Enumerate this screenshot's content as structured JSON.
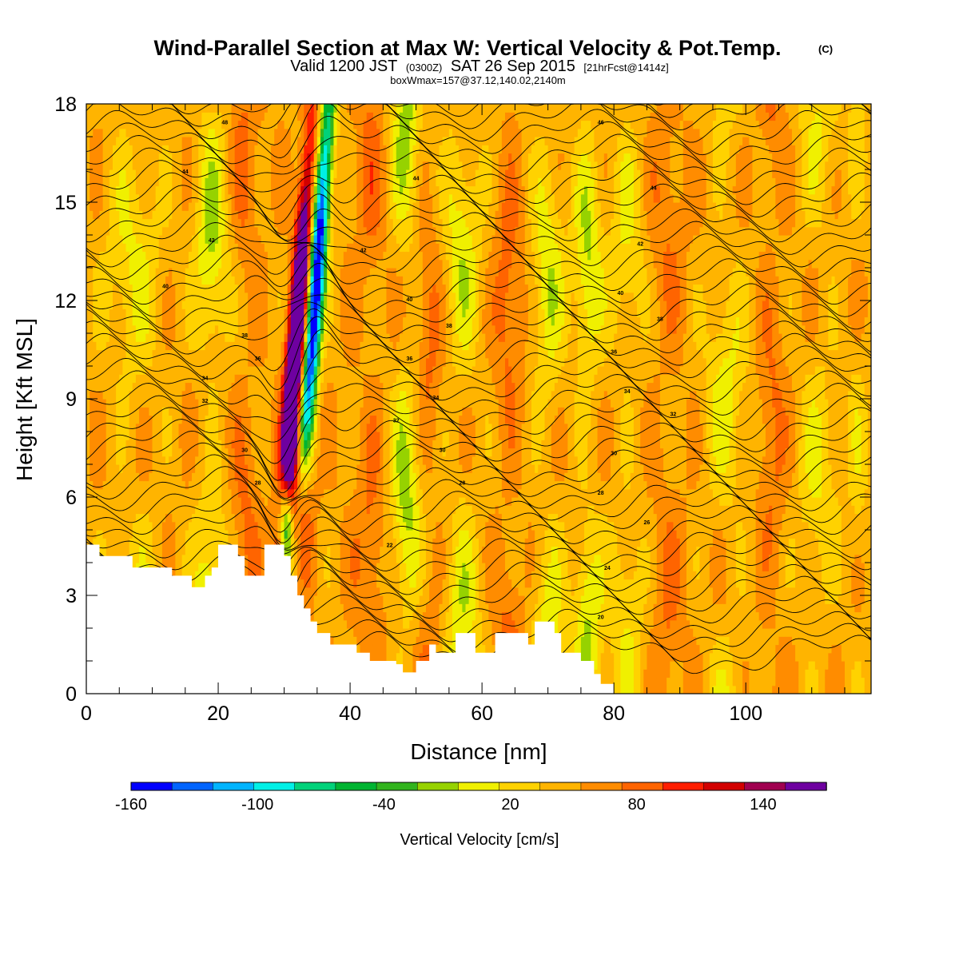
{
  "title": {
    "main": "Wind-Parallel Section at Max W: Vertical Velocity & Pot.Temp.",
    "copyright": "(C)",
    "valid_prefix": "Valid 1200 JST",
    "valid_utc": "(0300Z)",
    "valid_date": "SAT 26 Sep 2015",
    "forecast": "[21hrFcst@1414z]",
    "box_info": "boxWmax=157@37.12,140.02,2140m"
  },
  "chart_data": {
    "type": "heatmap",
    "title": "Wind-Parallel Section at Max W: Vertical Velocity & Pot.Temp.",
    "xlabel": "Distance [nm]",
    "ylabel": "Height [Kft MSL]",
    "xlim": [
      0,
      119
    ],
    "ylim": [
      0,
      18
    ],
    "x_ticks": [
      0,
      20,
      40,
      60,
      80,
      100
    ],
    "y_ticks": [
      0,
      3,
      6,
      9,
      12,
      15,
      18
    ],
    "colorbar": {
      "label": "Vertical Velocity [cm/s]",
      "tick_labels": [
        -160,
        -100,
        -40,
        20,
        80,
        140
      ],
      "levels": [
        -160,
        -145,
        -130,
        -115,
        -100,
        -85,
        -70,
        -55,
        -40,
        -25,
        -10,
        5,
        20,
        35,
        50,
        65,
        80,
        95,
        110,
        125,
        140,
        155,
        170
      ],
      "colors": [
        "#0000ff",
        "#0064ff",
        "#00b4ff",
        "#00f0e6",
        "#00d27a",
        "#00b432",
        "#32b41e",
        "#96d200",
        "#f0f000",
        "#ffd200",
        "#ffb400",
        "#ff8c00",
        "#ff6400",
        "#ff1e00",
        "#d20000",
        "#a00050",
        "#6e00a0"
      ],
      "color_levels": [
        -160,
        -145,
        -130,
        -115,
        -100,
        -85,
        -70,
        -55,
        -40,
        -25,
        -10,
        5,
        20,
        35,
        50,
        65,
        80,
        95,
        110,
        125,
        140,
        155
      ]
    },
    "terrain_profile": [
      [
        0,
        4.55
      ],
      [
        2,
        4.55
      ],
      [
        2,
        4.2
      ],
      [
        7,
        4.2
      ],
      [
        7,
        3.85
      ],
      [
        13,
        3.85
      ],
      [
        13,
        3.6
      ],
      [
        16,
        3.6
      ],
      [
        16,
        3.25
      ],
      [
        18,
        3.25
      ],
      [
        18,
        3.6
      ],
      [
        19,
        3.6
      ],
      [
        19,
        3.85
      ],
      [
        20,
        3.85
      ],
      [
        20,
        4.55
      ],
      [
        23,
        4.55
      ],
      [
        23,
        4.2
      ],
      [
        24,
        4.2
      ],
      [
        24,
        3.6
      ],
      [
        27,
        3.6
      ],
      [
        27,
        4.55
      ],
      [
        30,
        4.55
      ],
      [
        30,
        4.2
      ],
      [
        31,
        4.2
      ],
      [
        31,
        3.6
      ],
      [
        32,
        3.6
      ],
      [
        32,
        3.0
      ],
      [
        33,
        3.0
      ],
      [
        33,
        2.6
      ],
      [
        34,
        2.6
      ],
      [
        34,
        2.2
      ],
      [
        35,
        2.2
      ],
      [
        35,
        1.85
      ],
      [
        37,
        1.85
      ],
      [
        37,
        1.5
      ],
      [
        41,
        1.5
      ],
      [
        41,
        1.25
      ],
      [
        43,
        1.25
      ],
      [
        43,
        1.0
      ],
      [
        47,
        1.0
      ],
      [
        47,
        0.9
      ],
      [
        48,
        0.9
      ],
      [
        48,
        0.65
      ],
      [
        50,
        0.65
      ],
      [
        50,
        1.0
      ],
      [
        52,
        1.0
      ],
      [
        52,
        1.5
      ],
      [
        53,
        1.5
      ],
      [
        53,
        1.25
      ],
      [
        56,
        1.25
      ],
      [
        56,
        1.85
      ],
      [
        59,
        1.85
      ],
      [
        59,
        1.25
      ],
      [
        62,
        1.25
      ],
      [
        62,
        1.85
      ],
      [
        67,
        1.85
      ],
      [
        67,
        1.5
      ],
      [
        68,
        1.5
      ],
      [
        68,
        2.2
      ],
      [
        71,
        2.2
      ],
      [
        71,
        1.85
      ],
      [
        72,
        1.85
      ],
      [
        72,
        1.25
      ],
      [
        75,
        1.25
      ],
      [
        75,
        1.0
      ],
      [
        77,
        1.0
      ],
      [
        77,
        0.6
      ],
      [
        78,
        0.6
      ],
      [
        78,
        0.3
      ],
      [
        80,
        0.3
      ],
      [
        80,
        0.0
      ]
    ],
    "theta_contours": {
      "interval_K": 1,
      "base_K": 290,
      "count": 48,
      "labels": [
        {
          "text": "48",
          "x": 21,
          "y": 17.45
        },
        {
          "text": "46",
          "x": 78,
          "y": 17.45
        },
        {
          "text": "44",
          "x": 15,
          "y": 15.95
        },
        {
          "text": "44",
          "x": 50,
          "y": 15.75
        },
        {
          "text": "44",
          "x": 86,
          "y": 15.45
        },
        {
          "text": "42",
          "x": 19,
          "y": 13.85
        },
        {
          "text": "42",
          "x": 42,
          "y": 13.55
        },
        {
          "text": "42",
          "x": 84,
          "y": 13.75
        },
        {
          "text": "40",
          "x": 12,
          "y": 12.45
        },
        {
          "text": "40",
          "x": 49,
          "y": 12.05
        },
        {
          "text": "40",
          "x": 81,
          "y": 12.25
        },
        {
          "text": "38",
          "x": 24,
          "y": 10.95
        },
        {
          "text": "38",
          "x": 55,
          "y": 11.25
        },
        {
          "text": "38",
          "x": 87,
          "y": 11.45
        },
        {
          "text": "36",
          "x": 26,
          "y": 10.25
        },
        {
          "text": "36",
          "x": 49,
          "y": 10.25
        },
        {
          "text": "36",
          "x": 80,
          "y": 10.45
        },
        {
          "text": "34",
          "x": 18,
          "y": 9.65
        },
        {
          "text": "34",
          "x": 53,
          "y": 9.05
        },
        {
          "text": "34",
          "x": 82,
          "y": 9.25
        },
        {
          "text": "32",
          "x": 18,
          "y": 8.95
        },
        {
          "text": "32",
          "x": 47,
          "y": 8.35
        },
        {
          "text": "32",
          "x": 89,
          "y": 8.55
        },
        {
          "text": "30",
          "x": 24,
          "y": 7.45
        },
        {
          "text": "30",
          "x": 54,
          "y": 7.45
        },
        {
          "text": "30",
          "x": 80,
          "y": 7.35
        },
        {
          "text": "28",
          "x": 26,
          "y": 6.45
        },
        {
          "text": "28",
          "x": 57,
          "y": 6.45
        },
        {
          "text": "28",
          "x": 78,
          "y": 6.15
        },
        {
          "text": "26",
          "x": 85,
          "y": 5.25
        },
        {
          "text": "24",
          "x": 79,
          "y": 3.85
        },
        {
          "text": "22",
          "x": 46,
          "y": 4.55
        },
        {
          "text": "20",
          "x": 78,
          "y": 2.35
        }
      ]
    }
  }
}
